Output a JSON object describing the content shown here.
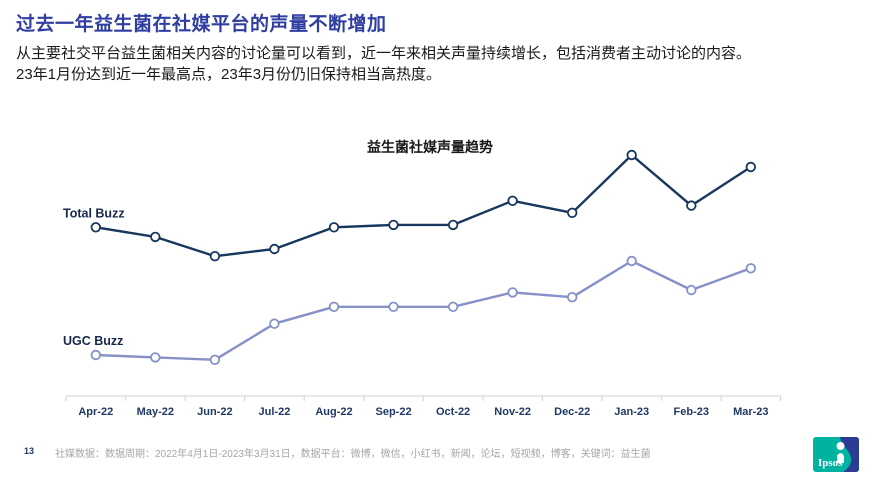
{
  "slide": {
    "title": "过去一年益生菌在社媒平台的声量不断增加",
    "body_line1": "从主要社交平台益生菌相关内容的讨论量可以看到，近一年来相关声量持续增长，包括消费者主动讨论的内容。",
    "body_line2": "23年1月份达到近一年最高点，23年3月份仍旧保持相当高热度。"
  },
  "chart_data": {
    "type": "line",
    "title": "益生菌社媒声量趋势",
    "categories": [
      "Apr-22",
      "May-22",
      "Jun-22",
      "Jul-22",
      "Aug-22",
      "Sep-22",
      "Oct-22",
      "Nov-22",
      "Dec-22",
      "Jan-23",
      "Feb-23",
      "Mar-23"
    ],
    "series": [
      {
        "name": "Total Buzz",
        "color": "#17375E",
        "values": [
          70,
          66,
          58,
          61,
          70,
          71,
          71,
          81,
          76,
          100,
          79,
          95
        ]
      },
      {
        "name": "UGC Buzz",
        "color": "#8691C8",
        "values": [
          17,
          16,
          15,
          30,
          37,
          37,
          37,
          43,
          41,
          56,
          44,
          53
        ]
      }
    ],
    "ylim": [
      0,
      110
    ],
    "value_note": "relative buzz index; no y-axis shown in source, values estimated from plotted positions (Jan-23 Total Buzz = 100 peak)",
    "xlabel": "",
    "ylabel": "",
    "grid": false,
    "legend_position": "inline-left-of-series",
    "marker": "open-circle",
    "axis_color": "#D9D9D9",
    "xlabel_color": "#1F3864",
    "series_label_color": "#16294A"
  },
  "footer": {
    "page_number": "13",
    "source_text": "社媒数据：数据周期：2022年4月1日-2023年3月31日，数据平台：微博，微信，小红书，新闻，论坛，短视频，博客，关键词：益生菌",
    "logo_text": "Ipsos",
    "logo_teal": "#00B2A0",
    "logo_navy": "#2C3C94"
  },
  "colors": {
    "title_blue": "#2F3EA0",
    "body_text": "#1A1A1A"
  }
}
